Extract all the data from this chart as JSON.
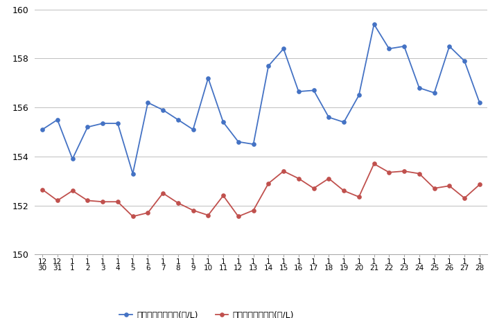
{
  "x_labels": [
    "12\n30",
    "12\n31",
    "1\n1",
    "1\n2",
    "1\n3",
    "1\n4",
    "1\n5",
    "1\n6",
    "1\n7",
    "1\n8",
    "1\n9",
    "1\n10",
    "1\n11",
    "1\n12",
    "1\n13",
    "1\n14",
    "1\n15",
    "1\n16",
    "1\n17",
    "1\n18",
    "1\n19",
    "1\n20",
    "1\n21",
    "1\n22",
    "1\n23",
    "1\n24",
    "1\n25",
    "1\n26",
    "1\n27",
    "1\n28"
  ],
  "blue_values": [
    155.1,
    155.5,
    153.9,
    155.2,
    155.35,
    155.35,
    153.3,
    156.2,
    155.9,
    155.5,
    155.1,
    157.2,
    155.4,
    154.6,
    154.5,
    157.7,
    158.4,
    156.65,
    156.7,
    155.6,
    155.4,
    156.5,
    159.4,
    158.4,
    158.5,
    156.8,
    156.6,
    158.5,
    157.9,
    156.2
  ],
  "red_values": [
    152.65,
    152.2,
    152.6,
    152.2,
    152.15,
    152.15,
    151.55,
    151.7,
    152.5,
    152.1,
    151.8,
    151.6,
    152.4,
    151.55,
    151.8,
    152.9,
    153.4,
    153.1,
    152.7,
    153.1,
    152.6,
    152.35,
    153.7,
    153.35,
    153.4,
    153.3,
    152.7,
    152.8,
    152.3,
    152.85
  ],
  "blue_label": "ハイオク看板価格(円/L)",
  "red_label": "ハイオク実売価格(円/L)",
  "blue_color": "#4472C4",
  "red_color": "#C0504D",
  "ylim": [
    150,
    160
  ],
  "yticks": [
    150,
    152,
    154,
    156,
    158,
    160
  ],
  "bg_color": "#FFFFFF",
  "grid_color": "#BEBEBE"
}
